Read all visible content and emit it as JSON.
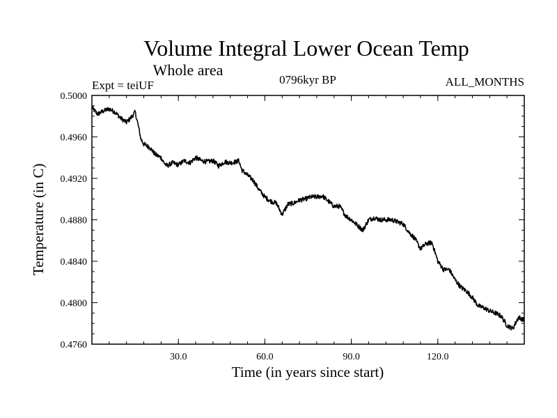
{
  "chart_data": {
    "type": "line",
    "title": "Volume Integral Lower Ocean Temp",
    "subtitle": "Whole area",
    "experiment": "Expt = teiUF",
    "period": "0796kyr BP",
    "months": "ALL_MONTHS",
    "xlabel": "Time (in years since start)",
    "ylabel": "Temperature (in C)",
    "xlim": [
      0,
      150
    ],
    "ylim": [
      0.476,
      0.5
    ],
    "xticks": [
      30,
      60,
      90,
      120
    ],
    "xtick_labels": [
      "30.0",
      "60.0",
      "90.0",
      "120.0"
    ],
    "yticks": [
      0.476,
      0.48,
      0.484,
      0.488,
      0.492,
      0.496,
      0.5
    ],
    "ytick_labels": [
      "0.4760",
      "0.4800",
      "0.4840",
      "0.4880",
      "0.4920",
      "0.4960",
      "0.5000"
    ],
    "line_color": "#000000",
    "series": [
      {
        "name": "Volume integral lower ocean temperature",
        "x": [
          0,
          2,
          4,
          6,
          8,
          10,
          12,
          14,
          15,
          16,
          17,
          18,
          20,
          22,
          24,
          25,
          26,
          28,
          30,
          32,
          34,
          36,
          38,
          40,
          42,
          44,
          46,
          48,
          50,
          51,
          52,
          54,
          56,
          58,
          60,
          62,
          64,
          66,
          68,
          70,
          72,
          74,
          76,
          78,
          80,
          82,
          84,
          86,
          88,
          90,
          92,
          94,
          96,
          98,
          100,
          102,
          104,
          106,
          108,
          110,
          112,
          114,
          116,
          118,
          120,
          122,
          124,
          126,
          128,
          130,
          132,
          134,
          136,
          138,
          140,
          142,
          144,
          146,
          148,
          150
        ],
        "values": [
          0.4988,
          0.4982,
          0.4985,
          0.4987,
          0.4984,
          0.4978,
          0.4974,
          0.498,
          0.4984,
          0.4972,
          0.4958,
          0.4953,
          0.495,
          0.4943,
          0.494,
          0.4935,
          0.4932,
          0.4935,
          0.4933,
          0.4937,
          0.4935,
          0.494,
          0.4937,
          0.4936,
          0.4937,
          0.4932,
          0.4936,
          0.4935,
          0.4936,
          0.4937,
          0.4928,
          0.4923,
          0.4918,
          0.4909,
          0.4902,
          0.4898,
          0.4896,
          0.4885,
          0.4895,
          0.4896,
          0.4899,
          0.49,
          0.4902,
          0.4902,
          0.4903,
          0.4898,
          0.4893,
          0.4893,
          0.4884,
          0.488,
          0.4875,
          0.487,
          0.488,
          0.4882,
          0.488,
          0.488,
          0.488,
          0.4878,
          0.4876,
          0.4868,
          0.4862,
          0.4852,
          0.4857,
          0.4858,
          0.484,
          0.4832,
          0.4832,
          0.4822,
          0.4815,
          0.4811,
          0.4805,
          0.4797,
          0.4795,
          0.4792,
          0.479,
          0.4787,
          0.4778,
          0.4775,
          0.4786,
          0.4783
        ]
      }
    ]
  }
}
